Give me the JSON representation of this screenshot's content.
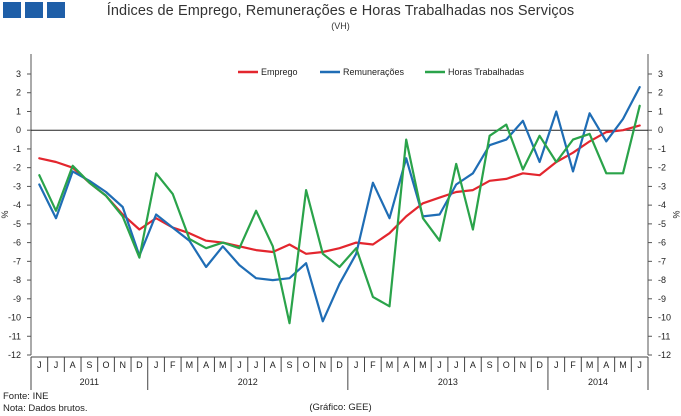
{
  "header": {
    "squares": [
      "brand-square",
      "brand-square",
      "brand-square"
    ],
    "brand_color": "#1f5fa8"
  },
  "footer": {
    "source": "Fonte: INE",
    "note": "Nota: Dados brutos.",
    "credit": "(Gráfico: GEE)"
  },
  "chart_data": {
    "type": "line",
    "title": "Índices de Emprego, Remunerações e Horas Trabalhadas nos Serviços",
    "subtitle": "(VH)",
    "ylabel_left": "%",
    "ylabel_right": "%",
    "ylim": [
      -12,
      3
    ],
    "yticks": [
      3,
      2,
      1,
      0,
      -1,
      -2,
      -3,
      -4,
      -5,
      -6,
      -7,
      -8,
      -9,
      -10,
      -11,
      -12
    ],
    "months": [
      "J",
      "J",
      "A",
      "S",
      "O",
      "N",
      "D",
      "J",
      "F",
      "M",
      "A",
      "M",
      "J",
      "J",
      "A",
      "S",
      "O",
      "N",
      "D",
      "J",
      "F",
      "M",
      "A",
      "M",
      "J",
      "J",
      "A",
      "S",
      "O",
      "N",
      "D",
      "J",
      "F",
      "M",
      "A",
      "M",
      "J"
    ],
    "years": [
      {
        "label": "2011",
        "months": 7
      },
      {
        "label": "2012",
        "months": 12
      },
      {
        "label": "2013",
        "months": 12
      },
      {
        "label": "2014",
        "months": 6
      }
    ],
    "legend_position": "top-right",
    "series": [
      {
        "name": "Emprego",
        "color": "#e3262e",
        "values": [
          -1.5,
          -1.7,
          -2.0,
          -2.8,
          -3.5,
          -4.5,
          -5.3,
          -4.7,
          -5.2,
          -5.5,
          -5.9,
          -6.0,
          -6.2,
          -6.4,
          -6.5,
          -6.1,
          -6.6,
          -6.5,
          -6.3,
          -6.0,
          -6.1,
          -5.5,
          -4.6,
          -3.9,
          -3.6,
          -3.3,
          -3.2,
          -2.7,
          -2.6,
          -2.3,
          -2.4,
          -1.7,
          -1.2,
          -0.6,
          -0.1,
          0.0,
          0.25
        ]
      },
      {
        "name": "Remunerações",
        "color": "#1f6db5",
        "values": [
          -2.9,
          -4.7,
          -2.2,
          -2.7,
          -3.3,
          -4.1,
          -6.7,
          -4.5,
          -5.2,
          -5.9,
          -7.3,
          -6.2,
          -7.2,
          -7.9,
          -8.0,
          -7.9,
          -7.1,
          -10.2,
          -8.2,
          -6.6,
          -2.8,
          -4.7,
          -1.5,
          -4.6,
          -4.5,
          -2.9,
          -2.3,
          -0.8,
          -0.5,
          0.5,
          -1.7,
          1.0,
          -2.2,
          0.9,
          -0.6,
          0.6,
          2.3
        ]
      },
      {
        "name": "Horas Trabalhadas",
        "color": "#2aa34a",
        "values": [
          -2.4,
          -4.3,
          -1.9,
          -2.8,
          -3.5,
          -4.6,
          -6.8,
          -2.3,
          -3.4,
          -5.8,
          -6.3,
          -6.0,
          -6.3,
          -4.3,
          -6.2,
          -10.3,
          -3.2,
          -6.6,
          -7.3,
          -6.3,
          -8.9,
          -9.4,
          -0.5,
          -4.7,
          -5.9,
          -1.8,
          -5.3,
          -0.3,
          0.3,
          -2.1,
          -0.3,
          -1.7,
          -0.5,
          -0.2,
          -2.3,
          -2.3,
          1.3
        ]
      }
    ]
  }
}
